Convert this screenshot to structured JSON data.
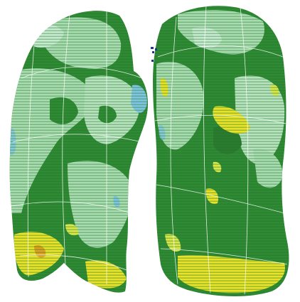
{
  "image": {
    "kind": "3D surface-rendered paired organ visualization (left and right lobes) with color-coded point texture",
    "background_color": "#ffffff"
  },
  "palette": {
    "dark_green": "#2f8a34",
    "mid_green": "#4a9e45",
    "light_green": "#a8dcb0",
    "pale_green": "#c6ead0",
    "yellow": "#e8e22a",
    "orange": "#e0a020",
    "light_blue": "#7fc4e0",
    "dark_blue": "#1a3a8a",
    "grid_line": "#ffffff"
  }
}
